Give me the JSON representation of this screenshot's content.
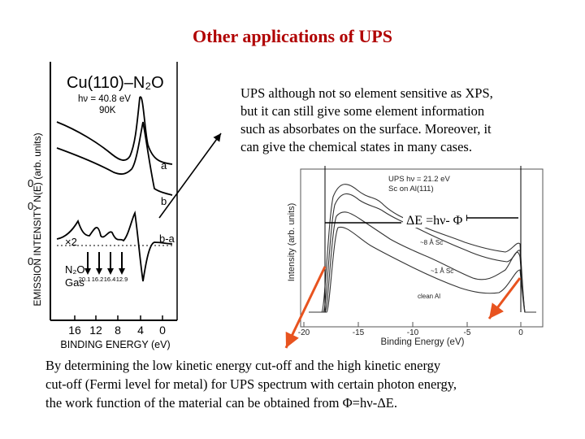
{
  "title": "Other applications of UPS",
  "intro_lines": [
    "UPS although not so element sensitive as XPS,",
    "but it can still give some element information",
    "such as absorbates on the surface. Moreover, it",
    "can give the chemical states in many cases."
  ],
  "footer_lines": [
    "By determining the low kinetic energy cut-off and the high kinetic energy",
    "cut-off (Fermi level for metal) for UPS spectrum with certain photon energy,",
    "the work function of the material can be obtained from Φ=hν-ΔE."
  ],
  "left_figure": {
    "system": "Cu(110)–N₂O",
    "photon": "hν = 40.8 eV",
    "temp": "90K",
    "ylabel": "EMISSION INTENSITY N(E) (arb. units)",
    "xlabel": "BINDING ENERGY (eV)",
    "xticks": [
      "16",
      "12",
      "8",
      "4",
      "0"
    ],
    "y_zero": "0",
    "curve_labels": [
      "a",
      "b",
      "b-a"
    ],
    "scale": "×2",
    "gas_label_1": "N₂O",
    "gas_label_2": "Gas",
    "gas_lines": [
      "20.1",
      "16.2",
      "16.4",
      "12.9"
    ]
  },
  "right_figure": {
    "source_line1": "UPS   hν = 21.2 eV",
    "source_line2": "Sc on Al(111)",
    "ylabel": "Intensity (arb. units)",
    "xlabel": "Binding Energy (eV)",
    "xticks": [
      "-20",
      "-15",
      "-10",
      "-5",
      "0"
    ],
    "curve_labels": [
      "~8 Å Sc",
      "~1 Å Sc",
      "clean Al"
    ]
  },
  "annotation": "ΔE =hν- Φ",
  "colors": {
    "title": "#b00000",
    "arrows": "#e8531f",
    "text": "#000000"
  }
}
